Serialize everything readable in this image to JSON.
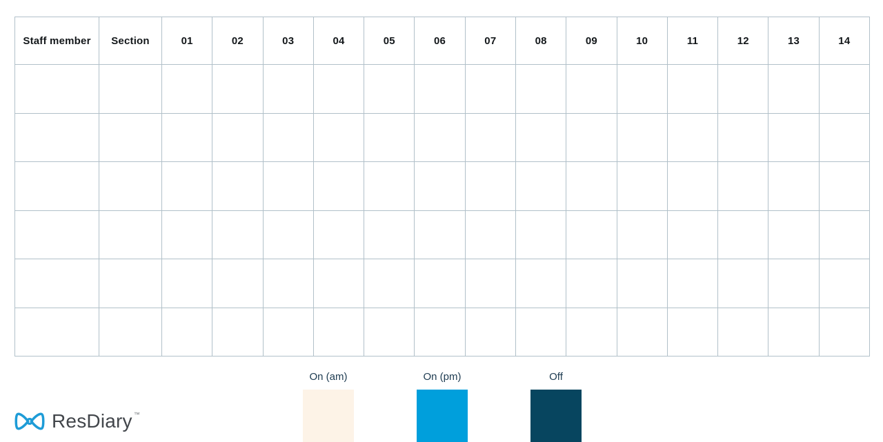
{
  "table": {
    "headers": [
      "Staff member",
      "Section",
      "01",
      "02",
      "03",
      "04",
      "05",
      "06",
      "07",
      "08",
      "09",
      "10",
      "11",
      "12",
      "13",
      "14"
    ],
    "row_count": 6
  },
  "legend": {
    "items": [
      {
        "label": "On (am)",
        "color": "#FDF3E7"
      },
      {
        "label": "On (pm)",
        "color": "#009FDC"
      },
      {
        "label": "Off",
        "color": "#07455F"
      }
    ]
  },
  "branding": {
    "logo_text": "ResDiary",
    "trademark": "™",
    "logo_color": "#1E9CD7"
  },
  "colors": {
    "grid_line": "#B1C0C9",
    "header_text": "#13171A",
    "legend_label_text": "#1C3A50",
    "logo_text_color": "#42464B",
    "background": "#FFFFFF"
  }
}
